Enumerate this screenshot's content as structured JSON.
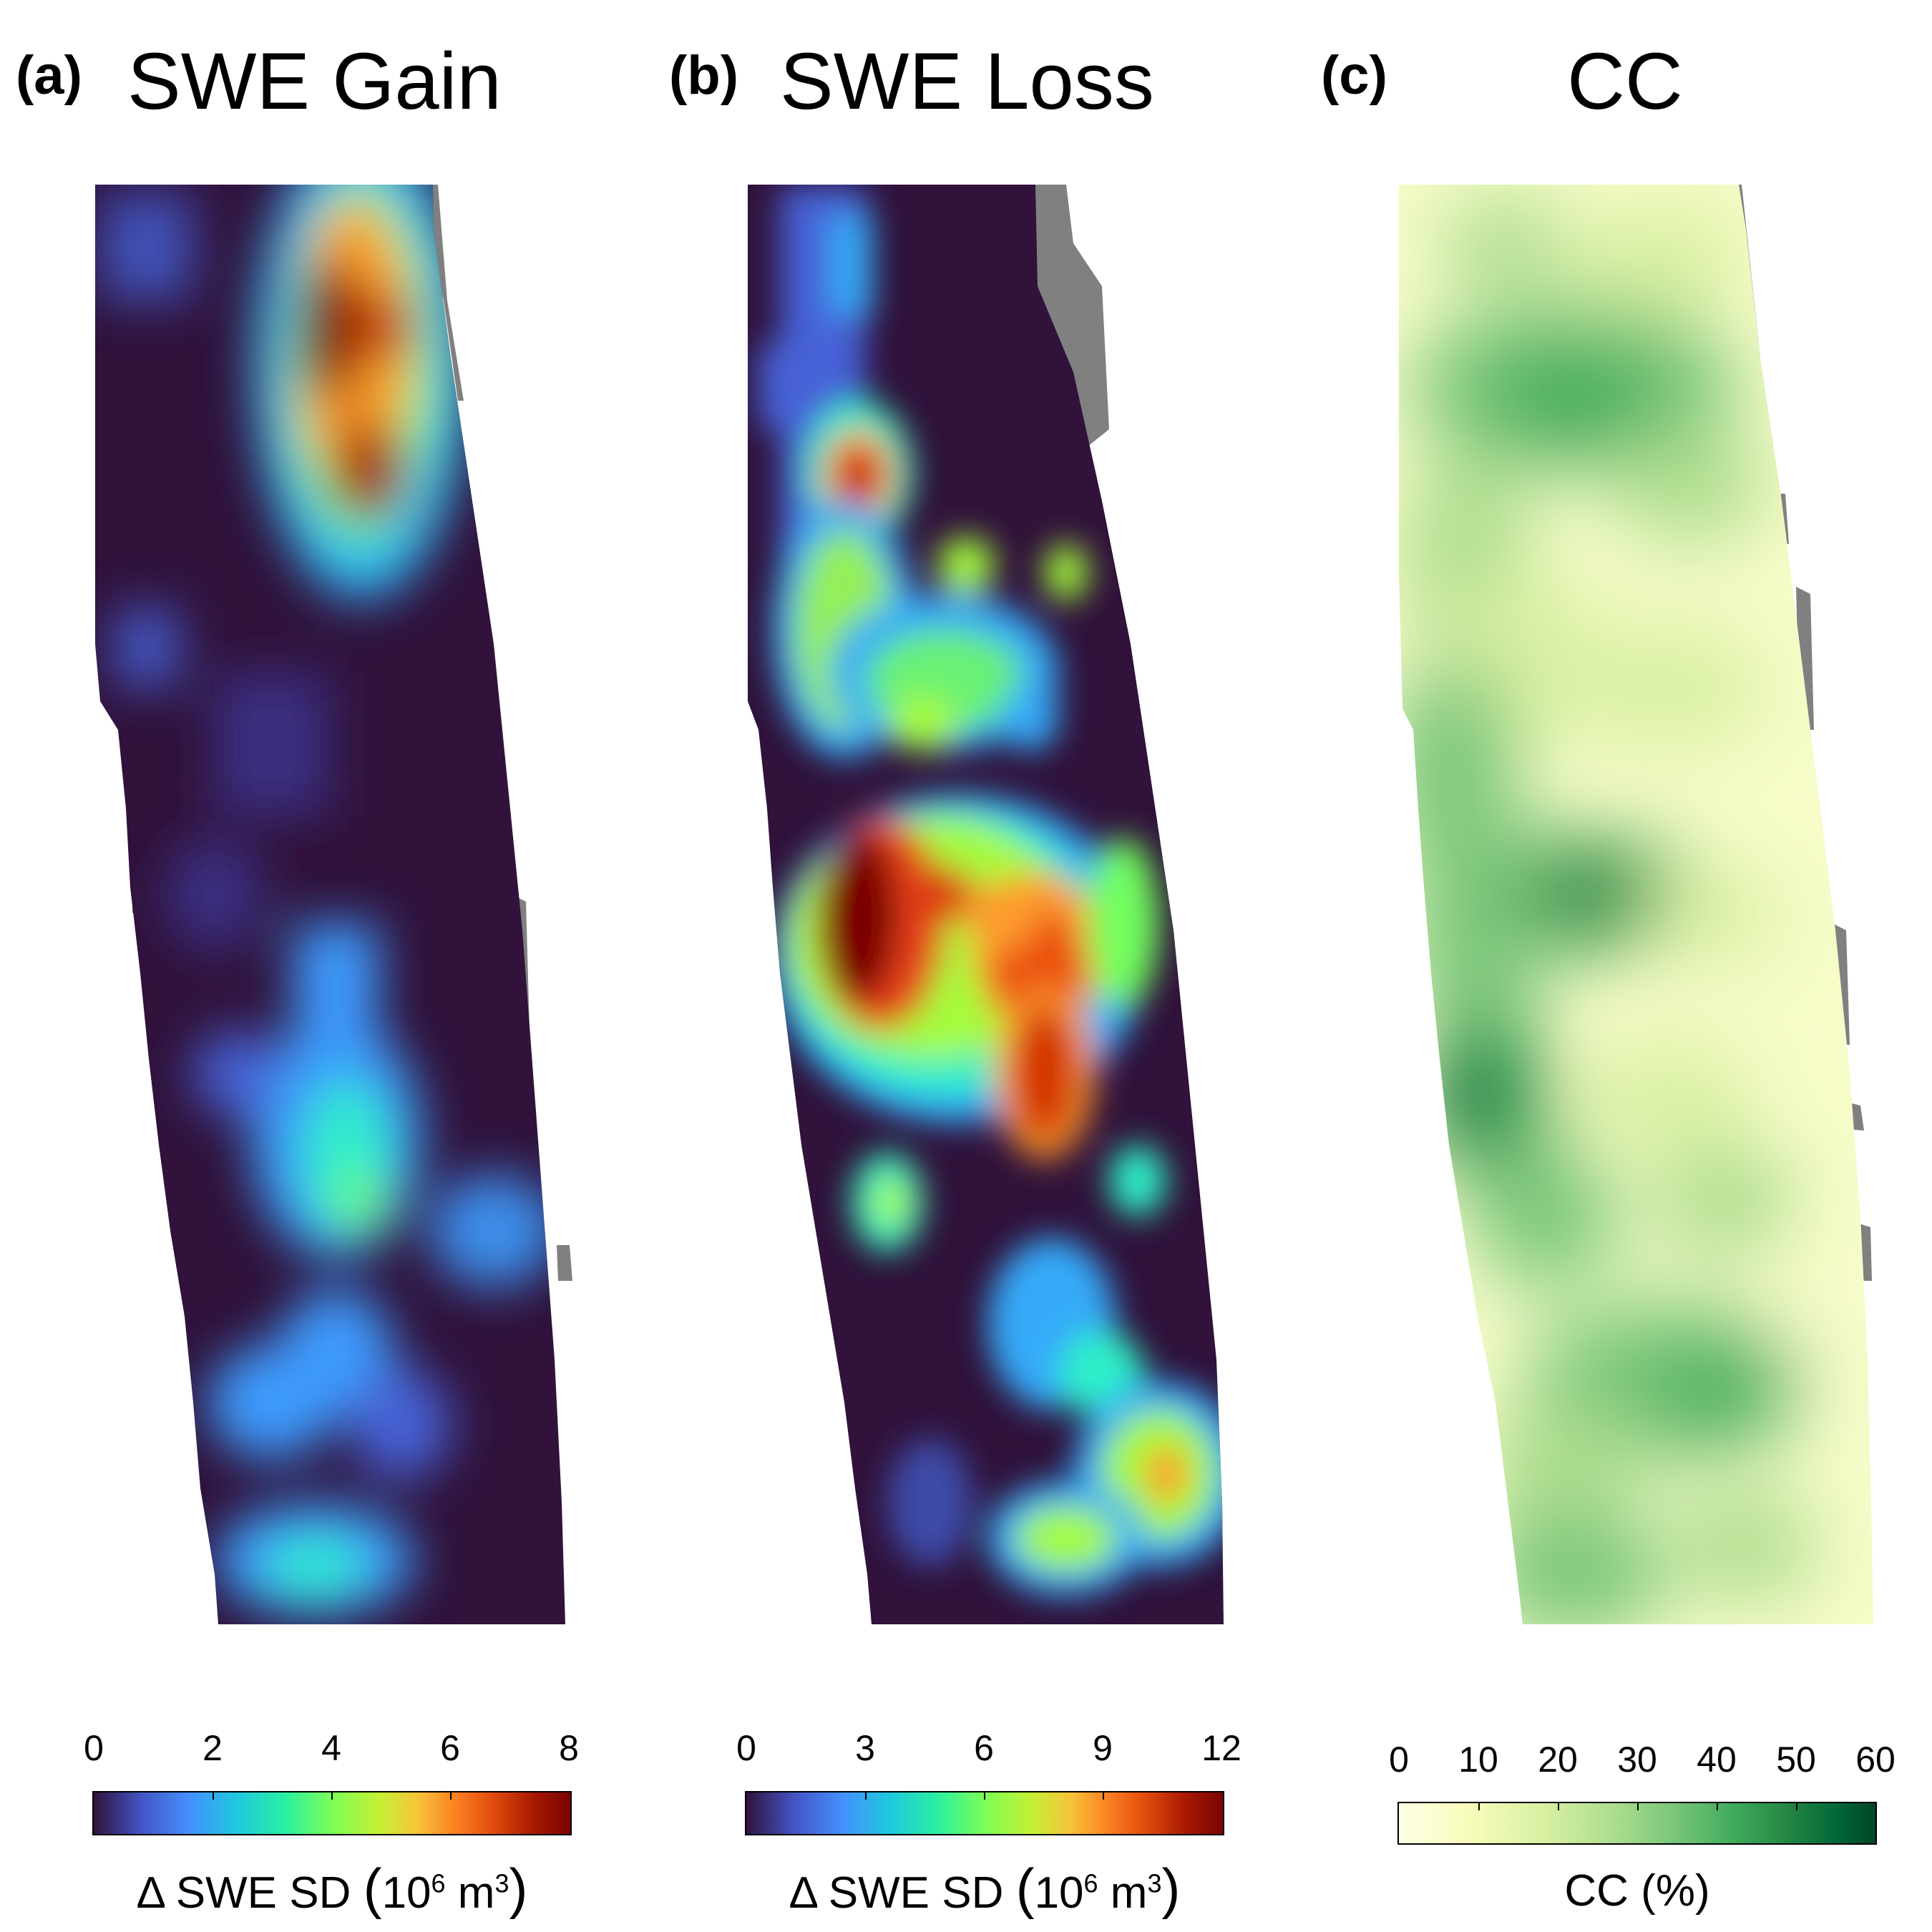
{
  "panels": [
    {
      "tag": "(a)",
      "title": "SWE Gain"
    },
    {
      "tag": "(b)",
      "title": "SWE Loss"
    },
    {
      "tag": "(c)",
      "title": "CC"
    }
  ],
  "colorbars": [
    {
      "ticks": [
        "0",
        "2",
        "4",
        "6",
        "8"
      ],
      "range": [
        0,
        8
      ],
      "label_main": "Δ SWE SD",
      "label_unit_base": "10",
      "label_exp1": "6",
      "label_unit_mid": " m",
      "label_exp2": "3",
      "colormap": "turbo"
    },
    {
      "ticks": [
        "0",
        "3",
        "6",
        "9",
        "12"
      ],
      "range": [
        0,
        12
      ],
      "label_main": "Δ SWE SD",
      "label_unit_base": "10",
      "label_exp1": "6",
      "label_unit_mid": " m",
      "label_exp2": "3",
      "colormap": "turbo"
    },
    {
      "ticks": [
        "0",
        "10",
        "20",
        "30",
        "40",
        "50",
        "60"
      ],
      "range": [
        0,
        60
      ],
      "label": "CC (%)",
      "colormap": "YlGn"
    }
  ],
  "colors": {
    "nodata": "#808080",
    "turbo_low": "#30123b",
    "turbo_mid": "#2ef0c8",
    "turbo_high": "#7a0403",
    "ylgn_low": "#ffffe5",
    "ylgn_high": "#004529"
  }
}
